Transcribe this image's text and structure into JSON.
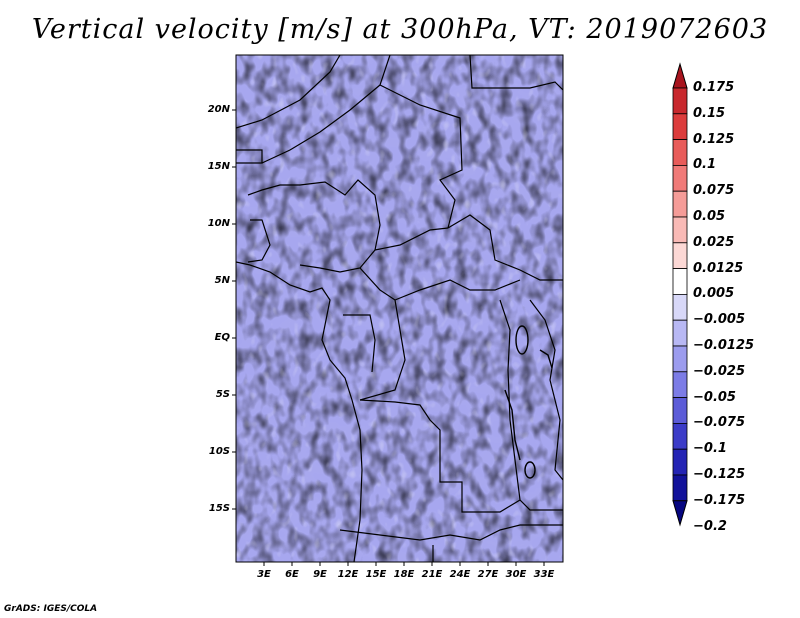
{
  "title": "Vertical velocity [m/s] at 300hPa, VT: 2019072603",
  "credit": "GrADS: IGES/COLA",
  "map": {
    "lat_labels": [
      "20N",
      "15N",
      "10N",
      "5N",
      "EQ",
      "5S",
      "10S",
      "15S"
    ],
    "lon_labels": [
      "3E",
      "6E",
      "9E",
      "12E",
      "15E",
      "18E",
      "21E",
      "24E",
      "27E",
      "30E",
      "33E"
    ]
  },
  "colorbar": {
    "labels": [
      "0.175",
      "0.15",
      "0.125",
      "0.1",
      "0.075",
      "0.05",
      "0.025",
      "0.0125",
      "0.005",
      "−0.005",
      "−0.0125",
      "−0.025",
      "−0.05",
      "−0.075",
      "−0.1",
      "−0.125",
      "−0.175",
      "−0.2"
    ],
    "colors": [
      "#a8141e",
      "#c8282d",
      "#dc3c3c",
      "#e85c5a",
      "#f07a78",
      "#f59c98",
      "#f9bab6",
      "#fcd8d5",
      "#ffffff",
      "#d8d8f8",
      "#b8b8f4",
      "#9c9cee",
      "#7c7ce6",
      "#5c5cd8",
      "#3c3cc8",
      "#2424b4",
      "#12129a",
      "#060680"
    ]
  },
  "colors": {
    "positive": "#e87a78",
    "negative": "#7c7ce6",
    "background": "#ffffff"
  }
}
